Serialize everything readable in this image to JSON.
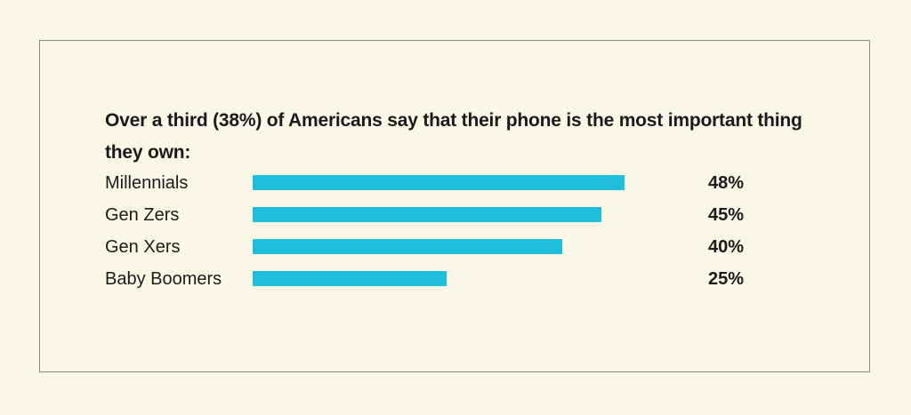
{
  "chart_data": {
    "type": "bar",
    "orientation": "horizontal",
    "title": "Over a third (38%) of Americans say that their phone is the most important thing they own:",
    "categories": [
      "Millennials",
      "Gen Zers",
      "Gen Xers",
      "Baby Boomers"
    ],
    "values": [
      48,
      45,
      40,
      25
    ],
    "value_labels": [
      "48%",
      "45%",
      "40%",
      "25%"
    ],
    "unit": "%",
    "bar_color": "#1fbfdd",
    "grid": false,
    "legend": "none"
  }
}
